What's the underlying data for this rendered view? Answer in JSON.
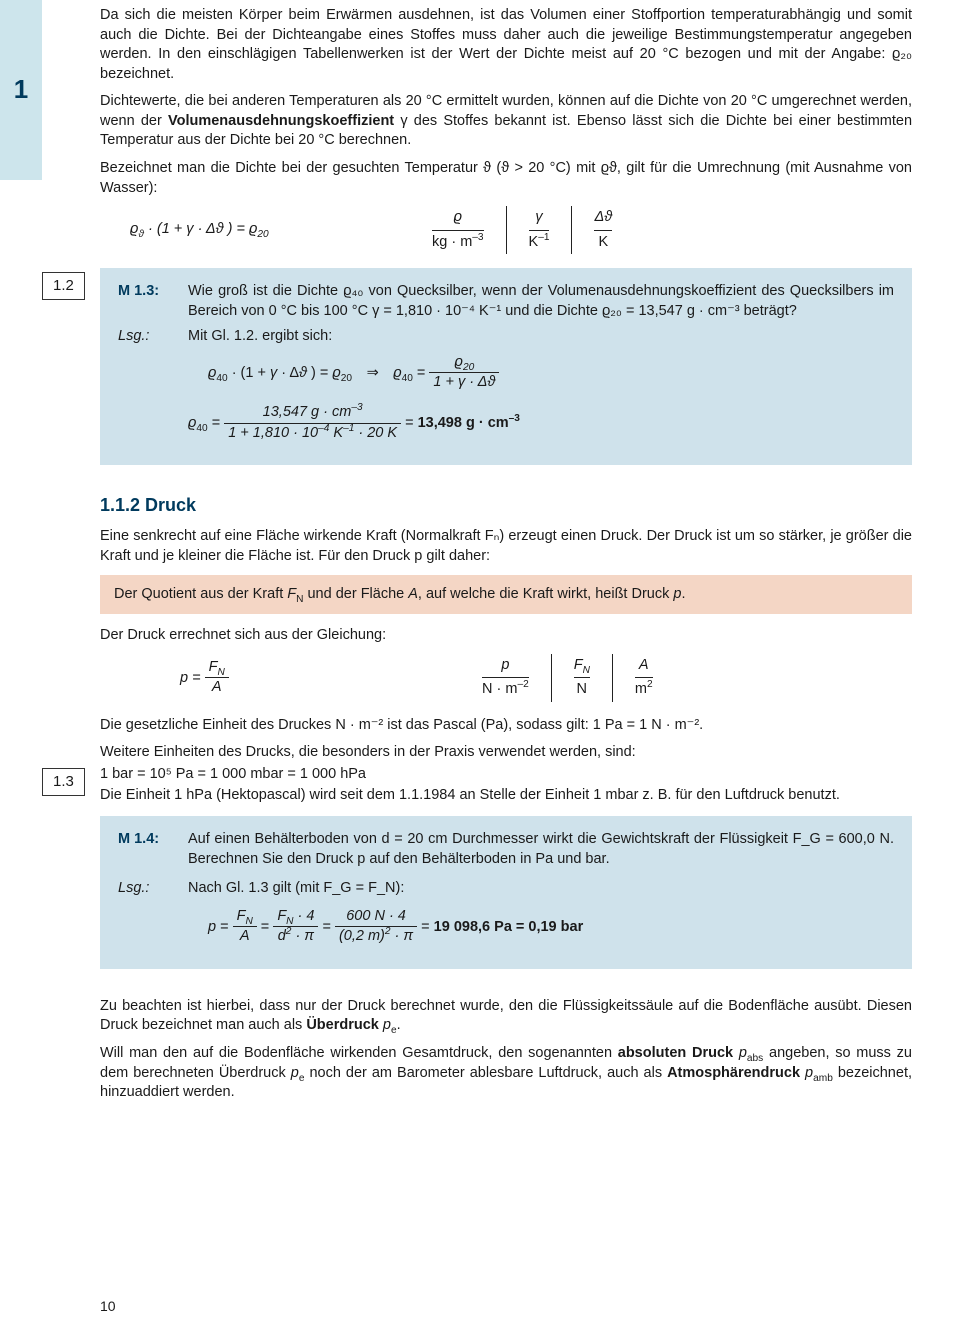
{
  "chapter_tab": "1",
  "page_number": "10",
  "para1": "Da sich die meisten Körper beim Erwärmen ausdehnen, ist das Volumen einer Stoffportion temperaturabhängig und somit auch die Dichte. Bei der Dichteangabe eines Stoffes muss daher auch die jeweilige Bestimmungstemperatur angegeben werden. In den einschlägigen Tabellenwerken ist der Wert der Dichte meist auf 20 °C bezogen und mit der Angabe: ϱ₂₀ bezeichnet.",
  "para2_pre": "Dichtewerte, die bei anderen Temperaturen als 20 °C ermittelt wurden, können auf die Dichte von 20 °C umgerechnet werden, wenn der ",
  "para2_bold": "Volumenausdehnungskoeffizient",
  "para2_post": " γ des Stoffes bekannt ist. Ebenso lässt sich die Dichte bei einer bestimmten Temperatur aus der Dichte bei 20 °C berechnen.",
  "para3": "Bezeichnet man die Dichte bei der gesuchten Temperatur ϑ (ϑ > 20 °C) mit ϱϑ, gilt für die Umrechnung (mit Ausnahme von Wasser):",
  "eq12": {
    "tag": "1.2",
    "formula_html": "<span class='math'>ϱ<sub>ϑ</sub></span> · (1 + <span class='math'>γ</span> · Δ<span class='math'>ϑ</span> ) = <span class='math'>ϱ</span><sub>20</sub>",
    "units": [
      {
        "sym": "ϱ",
        "unit": "kg · m<sup>–3</sup>"
      },
      {
        "sym": "γ",
        "unit": "K<sup>–1</sup>"
      },
      {
        "sym": "Δϑ",
        "unit": "K"
      }
    ]
  },
  "ex13": {
    "label": "M 1.3:",
    "q": "Wie groß ist die Dichte ϱ₄₀ von Quecksilber, wenn der Volumenausdehnungskoeffizient des Quecksilbers im Bereich von 0 °C bis 100 °C γ = 1,810 · 10⁻⁴ K⁻¹ und die Dichte ϱ₂₀ = 13,547 g · cm⁻³ beträgt?",
    "lsg_label": "Lsg.:",
    "lsg_intro": "Mit Gl. 1.2. ergibt sich:",
    "line1_html": "<span class='math'>ϱ</span><sub>40</sub> · (1 + <span class='math'>γ</span> · Δ<span class='math'>ϑ</span> ) = <span class='math'>ϱ</span><sub>20</sub> ⇒ <span class='math'>ϱ</span><sub>40</sub> = <span class='frac'><span class='top'><span class='math'>ϱ</span><sub>20</sub></span><span class='bot'>1 + <span class='math'>γ</span> · Δ<span class='math'>ϑ</span></span></span>",
    "line2_html": "<span class='math'>ϱ</span><sub>40</sub> = <span class='frac'><span class='top'>13,547 g · cm<sup>–3</sup></span><span class='bot'>1 + 1,810 · 10<sup>–4</sup> K<sup>–1</sup> · 20 K</span></span> = <b>13,498 g · cm<sup>–3</sup></b>"
  },
  "sec112": {
    "title": "1.1.2  Druck",
    "p1": "Eine senkrecht auf eine Fläche wirkende Kraft (Normalkraft Fₙ) erzeugt einen Druck. Der Druck ist um so stärker, je größer die Kraft und je kleiner die Fläche ist. Für den Druck p gilt daher:",
    "def_html": "Der Quotient aus der Kraft <span class='math'>F</span><sub>N</sub> und der Fläche <span class='math'>A</span>, auf welche die Kraft wirkt, heißt Druck <span class='math'>p</span>.",
    "p2": "Der Druck errechnet sich aus der Gleichung:"
  },
  "eq13": {
    "tag": "1.3",
    "formula_html": "<span class='math'>p</span> = <span class='frac'><span class='top'><span class='math'>F</span><sub>N</sub></span><span class='bot'><span class='math'>A</span></span></span>",
    "units": [
      {
        "sym": "p",
        "unit": "N · m<sup>–2</sup>"
      },
      {
        "sym": "F<sub>N</sub>",
        "unit": "N"
      },
      {
        "sym": "A",
        "unit": "m<sup>2</sup>"
      }
    ]
  },
  "after13": {
    "p1": "Die gesetzliche Einheit des Druckes N · m⁻² ist das Pascal (Pa), sodass gilt: 1 Pa = 1 N · m⁻².",
    "p2": "Weitere Einheiten des Drucks, die besonders in der Praxis verwendet werden, sind:",
    "p3": "1 bar = 10⁵ Pa = 1 000 mbar = 1 000 hPa",
    "p4": "Die Einheit 1 hPa (Hektopascal) wird seit dem 1.1.1984 an Stelle der Einheit 1 mbar z. B. für den Luftdruck benutzt."
  },
  "ex14": {
    "label": "M 1.4:",
    "q": "Auf einen Behälterboden von d = 20 cm Durchmesser wirkt die Gewichtskraft der Flüssigkeit F_G = 600,0 N. Berechnen Sie den Druck p auf den Behälterboden in Pa und bar.",
    "lsg_label": "Lsg.:",
    "lsg_intro": "Nach Gl. 1.3 gilt (mit F_G = F_N):",
    "line_html": "<span class='math'>p</span> = <span class='frac'><span class='top'><span class='math'>F</span><sub>N</sub></span><span class='bot'><span class='math'>A</span></span></span> = <span class='frac'><span class='top'><span class='math'>F</span><sub>N</sub> · 4</span><span class='bot'><span class='math'>d</span><sup>2</sup> · π</span></span> = <span class='frac'><span class='top'>600 N · 4</span><span class='bot'>(0,2 m)<sup>2</sup> · π</span></span> = <b>19 098,6 Pa = 0,19 bar</b>"
  },
  "closing": {
    "p1_html": "Zu beachten ist hierbei, dass nur der Druck berechnet wurde, den die Flüssigkeitssäule auf die Bodenfläche ausübt. Diesen Druck bezeichnet man auch als <b>Überdruck</b> <span class='math'>p</span><sub>e</sub>.",
    "p2_html": "Will man den auf die Bodenfläche wirkenden Gesamtdruck, den sogenannten <b>absoluten Druck</b> <span class='math'>p</span><sub>abs</sub> angeben, so muss zu dem berechneten Überdruck <span class='math'>p</span><sub>e</sub> noch der am Barometer ablesbare Luftdruck, auch als <b>Atmosphärendruck</b> <span class='math'>p</span><sub>amb</sub> bezeichnet, hinzuaddiert werden."
  }
}
